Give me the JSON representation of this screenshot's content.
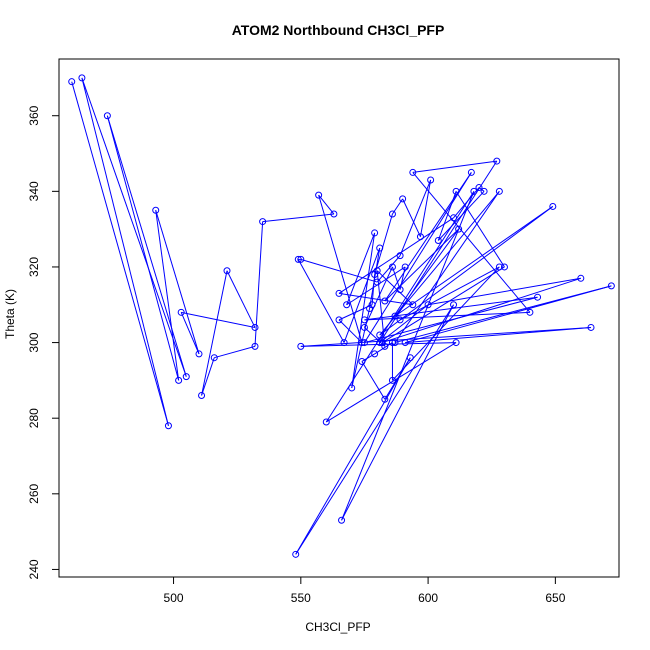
{
  "chart_data": {
    "type": "line",
    "title": "ATOM2 Northbound CH3Cl_PFP",
    "xlabel": "CH3Cl_PFP",
    "ylabel": "Theta (K)",
    "xlim": [
      455,
      675
    ],
    "ylim": [
      238,
      375
    ],
    "x_ticks": [
      500,
      550,
      600,
      650
    ],
    "y_ticks": [
      240,
      260,
      280,
      300,
      320,
      340,
      360
    ],
    "grid": false,
    "line_color": "#0000FF",
    "marker": "open-circle",
    "series": [
      {
        "x": [
          460,
          498,
          464,
          505,
          474,
          502,
          493,
          510,
          503,
          532,
          521,
          511,
          516,
          532,
          535,
          563,
          557,
          574,
          565,
          578,
          579,
          586,
          590,
          597,
          601,
          589,
          580,
          550,
          549,
          567,
          581,
          577,
          570,
          579,
          568,
          591,
          589,
          586,
          575,
          583,
          580,
          594,
          565,
          610,
          620,
          622,
          604,
          611,
          630,
          582,
          660,
          600,
          581,
          627,
          594,
          640,
          575,
          643,
          575,
          617,
          583,
          612,
          587,
          649,
          581,
          628,
          587,
          672,
          591,
          664,
          550,
          611,
          560,
          618,
          566,
          610,
          548,
          593,
          583,
          574,
          579,
          586,
          586,
          628,
          589
        ],
        "y": [
          369,
          278,
          370,
          291,
          360,
          290,
          335,
          297,
          308,
          304,
          319,
          286,
          296,
          299,
          332,
          334,
          339,
          300,
          306,
          310,
          318,
          334,
          338,
          328,
          343,
          323,
          316,
          322,
          322,
          300,
          325,
          309,
          288,
          329,
          310,
          320,
          314,
          320,
          304,
          299,
          319,
          310,
          313,
          333,
          341,
          340,
          327,
          340,
          320,
          300,
          317,
          310,
          300,
          348,
          345,
          308,
          306,
          312,
          300,
          345,
          311,
          330,
          307,
          336,
          302,
          340,
          300,
          315,
          300,
          304,
          299,
          300,
          279,
          340,
          253,
          310,
          244,
          296,
          285,
          295,
          297,
          300,
          290,
          320,
          306
        ]
      }
    ]
  }
}
